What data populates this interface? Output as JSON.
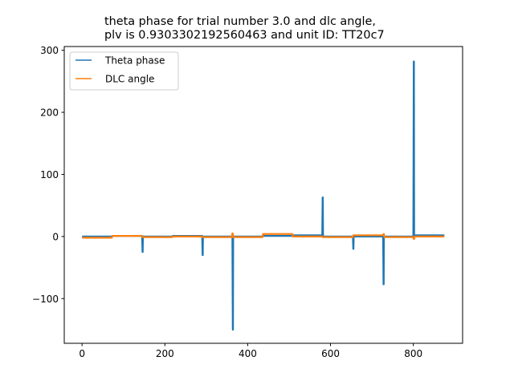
{
  "chart_data": {
    "type": "line",
    "title": [
      "theta phase for trial number 3.0 and dlc angle,",
      "plv is 0.9303302192560463 and unit ID: TT20c7"
    ],
    "xlabel": "",
    "ylabel": "",
    "xlim": [
      -43,
      919
    ],
    "ylim": [
      -172,
      306
    ],
    "xticks": [
      0,
      200,
      400,
      600,
      800
    ],
    "yticks": [
      -100,
      0,
      100,
      200,
      300
    ],
    "ytick_labels": [
      "−100",
      "0",
      "100",
      "200",
      "300"
    ],
    "grid": false,
    "legend_position": "upper left",
    "series": [
      {
        "name": "Theta phase",
        "color": "#1f77b4",
        "x": [
          0,
          72,
          73,
          145,
          146,
          146.5,
          147,
          218,
          219,
          290,
          291,
          291.5,
          292,
          363,
          364,
          364.5,
          365,
          436,
          437,
          508,
          509,
          580,
          581,
          581.5,
          582,
          654,
          655,
          655.5,
          656,
          727,
          728,
          728.5,
          729,
          800,
          801,
          801.5,
          802,
          875
        ],
        "y": [
          0,
          0,
          1,
          1,
          -25,
          -25,
          0,
          0,
          1,
          1,
          -30,
          -30,
          0,
          0,
          -150,
          -150,
          0,
          0,
          1,
          1,
          2,
          2,
          63,
          63,
          0,
          0,
          -20,
          -20,
          0,
          0,
          -77,
          -77,
          0,
          0,
          282,
          282,
          2,
          2
        ]
      },
      {
        "name": "DLC angle",
        "color": "#ff7f0e",
        "x": [
          0,
          72,
          73,
          145,
          146,
          218,
          219,
          290,
          291,
          362,
          363,
          364,
          365,
          436,
          437,
          508,
          509,
          580,
          581,
          654,
          655,
          727,
          728,
          729,
          730,
          800,
          801,
          802,
          803,
          875
        ],
        "y": [
          -2,
          -2,
          1,
          1,
          -1,
          -1,
          0,
          0,
          -1,
          -1,
          5,
          5,
          -1,
          -1,
          4,
          4,
          0,
          0,
          -1,
          -1,
          2,
          2,
          4,
          4,
          -1,
          -1,
          -4,
          -4,
          0,
          0
        ]
      }
    ]
  }
}
